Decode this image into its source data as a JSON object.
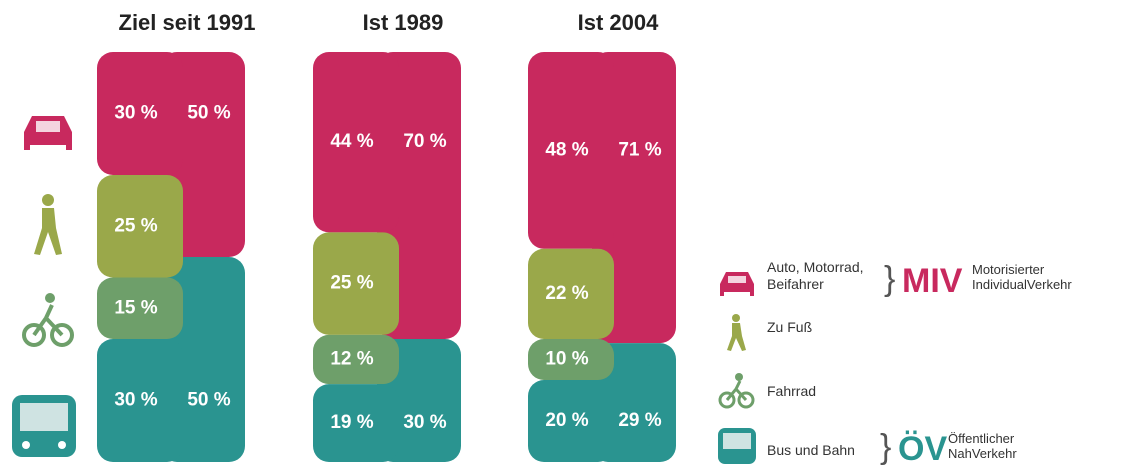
{
  "chart_data": {
    "type": "bar",
    "stacked": true,
    "categories": [
      "Ziel seit 1991",
      "Ist 1989",
      "Ist 2004"
    ],
    "ylim": [
      0,
      100
    ],
    "series": [
      {
        "name": "Auto, Motorrad, Beifahrer",
        "color": "#c8295e",
        "values": [
          30,
          44,
          48
        ],
        "value_labels": [
          "30 %",
          "44 %",
          "48 %"
        ]
      },
      {
        "name": "Zu Fuß",
        "color": "#9aa84a",
        "values": [
          25,
          25,
          22
        ],
        "value_labels": [
          "25 %",
          "25 %",
          "22 %"
        ]
      },
      {
        "name": "Fahrrad",
        "color": "#6e9f6a",
        "values": [
          15,
          12,
          10
        ],
        "value_labels": [
          "15 %",
          "12 %",
          "10 %"
        ]
      },
      {
        "name": "Bus und Bahn",
        "color": "#2a9490",
        "values": [
          30,
          19,
          20
        ],
        "value_labels": [
          "30 %",
          "19 %",
          "20 %"
        ]
      }
    ],
    "summary_series": [
      {
        "name": "MIV",
        "description": [
          "Motorisierter",
          "IndividualVerkehr"
        ],
        "color": "#c8295e",
        "values": [
          50,
          70,
          71
        ],
        "value_labels": [
          "50 %",
          "70 %",
          "71 %"
        ]
      },
      {
        "name": "ÖV",
        "description": [
          "Öffentlicher",
          "NahVerkehr"
        ],
        "color": "#2a9490",
        "values": [
          50,
          30,
          29
        ],
        "value_labels": [
          "50 %",
          "30 %",
          "29 %"
        ]
      }
    ]
  }
}
